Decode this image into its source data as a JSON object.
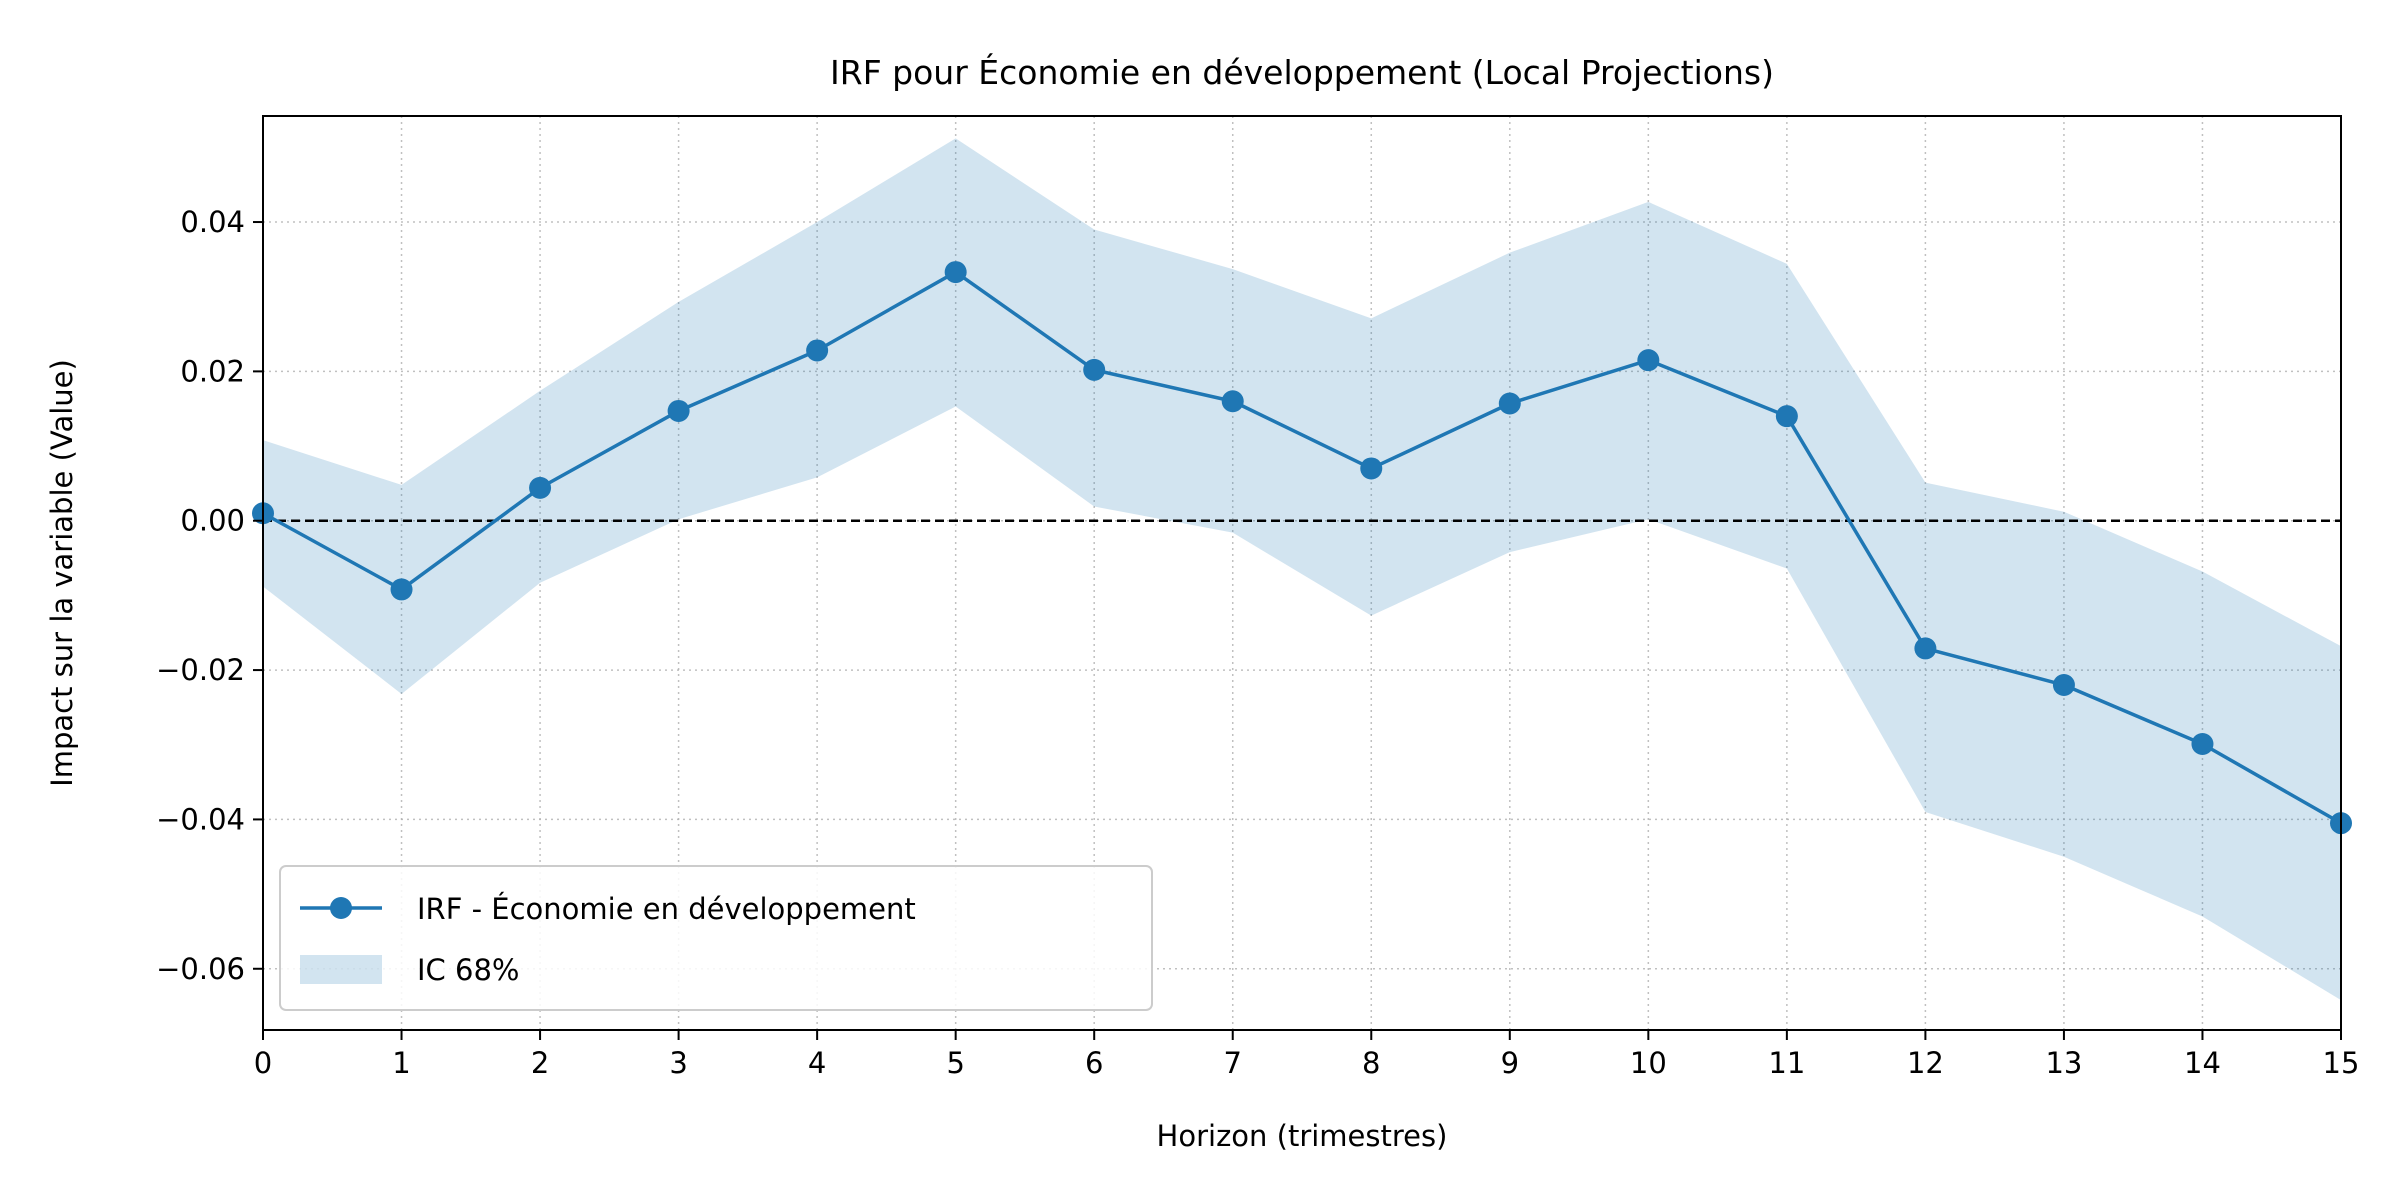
{
  "chart_data": {
    "type": "line",
    "title": "IRF pour Économie en développement (Local Projections)",
    "xlabel": "Horizon (trimestres)",
    "ylabel": "Impact sur la variable (Value)",
    "xlim": [
      0,
      15
    ],
    "ylim": [
      -0.0682,
      0.0542
    ],
    "x_ticks": [
      0,
      1,
      2,
      3,
      4,
      5,
      6,
      7,
      8,
      9,
      10,
      11,
      12,
      13,
      14,
      15
    ],
    "x_tick_labels": [
      "0",
      "1",
      "2",
      "3",
      "4",
      "5",
      "6",
      "7",
      "8",
      "9",
      "10",
      "11",
      "12",
      "13",
      "14",
      "15"
    ],
    "y_ticks": [
      -0.06,
      -0.04,
      -0.02,
      0.0,
      0.02,
      0.04
    ],
    "y_tick_labels": [
      "−0.06",
      "−0.04",
      "−0.02",
      "0.00",
      "0.02",
      "0.04"
    ],
    "grid": true,
    "zero_line": true,
    "legend_position": "lower-left",
    "series": [
      {
        "name": "IRF - Économie en développement",
        "color": "#1f77b4",
        "marker": "circle",
        "x": [
          0,
          1,
          2,
          3,
          4,
          5,
          6,
          7,
          8,
          9,
          10,
          11,
          12,
          13,
          14,
          15
        ],
        "values": [
          0.001,
          -0.0092,
          0.0044,
          0.0147,
          0.0228,
          0.0333,
          0.0202,
          0.016,
          0.007,
          0.0157,
          0.0215,
          0.014,
          -0.0171,
          -0.022,
          -0.0299,
          -0.0405
        ]
      }
    ],
    "band": {
      "name": "IC 68%",
      "color": "#1f77b4",
      "opacity": 0.2,
      "x": [
        0,
        1,
        2,
        3,
        4,
        5,
        6,
        7,
        8,
        9,
        10,
        11,
        12,
        13,
        14,
        15
      ],
      "lower": [
        -0.0088,
        -0.0232,
        -0.0083,
        0.0002,
        0.0058,
        0.0153,
        0.0019,
        -0.0016,
        -0.0127,
        -0.0042,
        0.0002,
        -0.0064,
        -0.039,
        -0.045,
        -0.053,
        -0.0642
      ],
      "upper": [
        0.0108,
        0.0048,
        0.0174,
        0.0293,
        0.04,
        0.0512,
        0.039,
        0.0337,
        0.0271,
        0.0359,
        0.0427,
        0.0344,
        0.0051,
        0.0012,
        -0.0068,
        -0.0168
      ]
    }
  }
}
